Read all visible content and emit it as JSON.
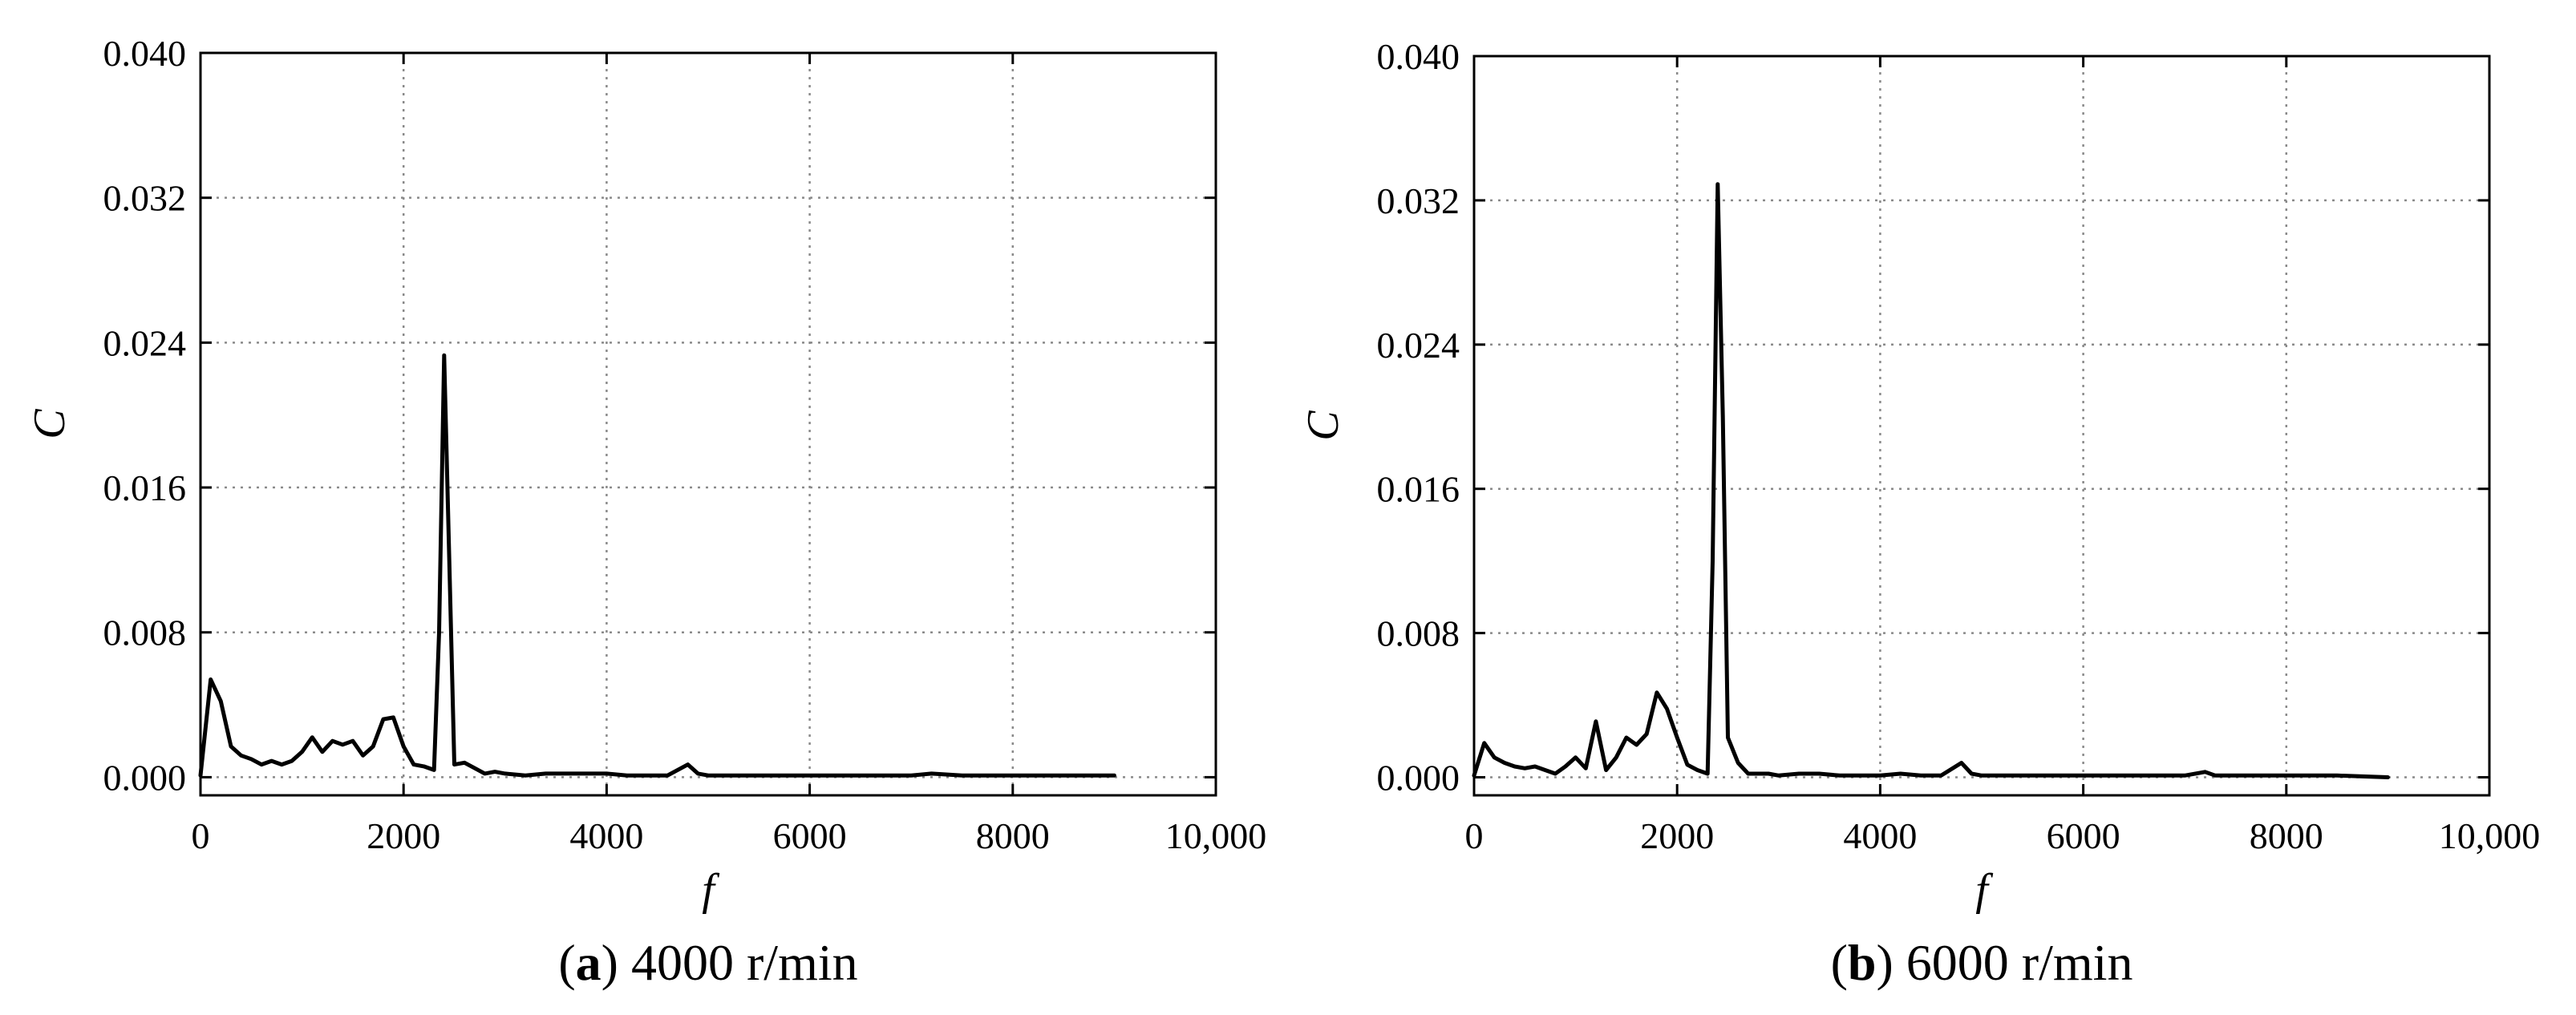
{
  "chart_data": [
    {
      "type": "line",
      "caption_letter": "a",
      "caption_rest": " 4000 r/min",
      "xlabel": "f",
      "ylabel": "C",
      "xlim": [
        0,
        10000
      ],
      "ylim": [
        -0.001,
        0.04
      ],
      "x_ticks": [
        0,
        2000,
        4000,
        6000,
        8000,
        10000
      ],
      "x_tick_labels": [
        "0",
        "2000",
        "4000",
        "6000",
        "8000",
        "10,000"
      ],
      "y_ticks": [
        0.0,
        0.008,
        0.016,
        0.024,
        0.032,
        0.04
      ],
      "y_tick_labels": [
        "0.000",
        "0.008",
        "0.016",
        "0.024",
        "0.032",
        "0.040"
      ],
      "grid": true,
      "series": [
        {
          "x": [
            0,
            100,
            200,
            300,
            400,
            500,
            600,
            700,
            800,
            900,
            1000,
            1100,
            1200,
            1300,
            1400,
            1500,
            1600,
            1700,
            1800,
            1900,
            2000,
            2100,
            2200,
            2300,
            2350,
            2400,
            2450,
            2500,
            2600,
            2700,
            2800,
            2900,
            3000,
            3200,
            3400,
            3600,
            3800,
            4000,
            4200,
            4400,
            4600,
            4800,
            4900,
            5000,
            5500,
            6000,
            6500,
            7000,
            7200,
            7500,
            8000,
            8500,
            9000
          ],
          "y": [
            0.0001,
            0.0054,
            0.0042,
            0.0017,
            0.0012,
            0.001,
            0.0007,
            0.0009,
            0.0007,
            0.0009,
            0.0014,
            0.0022,
            0.0014,
            0.002,
            0.0018,
            0.002,
            0.0012,
            0.0017,
            0.0032,
            0.0033,
            0.0017,
            0.0007,
            0.0006,
            0.0004,
            0.008,
            0.0233,
            0.012,
            0.0007,
            0.0008,
            0.0005,
            0.0002,
            0.0003,
            0.0002,
            0.0001,
            0.0002,
            0.0002,
            0.0002,
            0.0002,
            0.0001,
            0.0001,
            0.0001,
            0.0007,
            0.0002,
            0.0001,
            0.0001,
            0.0001,
            0.0001,
            0.0001,
            0.0002,
            0.0001,
            0.0001,
            0.0001,
            0.0001
          ]
        }
      ]
    },
    {
      "type": "line",
      "caption_letter": "b",
      "caption_rest": " 6000 r/min",
      "xlabel": "f",
      "ylabel": "C",
      "xlim": [
        0,
        10000
      ],
      "ylim": [
        -0.001,
        0.04
      ],
      "x_ticks": [
        0,
        2000,
        4000,
        6000,
        8000,
        10000
      ],
      "x_tick_labels": [
        "0",
        "2000",
        "4000",
        "6000",
        "8000",
        "10,000"
      ],
      "y_ticks": [
        0.0,
        0.008,
        0.016,
        0.024,
        0.032,
        0.04
      ],
      "y_tick_labels": [
        "0.000",
        "0.008",
        "0.016",
        "0.024",
        "0.032",
        "0.040"
      ],
      "grid": true,
      "series": [
        {
          "x": [
            0,
            100,
            200,
            300,
            400,
            500,
            600,
            700,
            800,
            900,
            1000,
            1100,
            1200,
            1300,
            1400,
            1500,
            1600,
            1700,
            1800,
            1900,
            2000,
            2100,
            2200,
            2300,
            2350,
            2400,
            2450,
            2500,
            2600,
            2700,
            2800,
            2900,
            3000,
            3200,
            3400,
            3600,
            3800,
            4000,
            4200,
            4400,
            4600,
            4800,
            4900,
            5000,
            5500,
            6000,
            6500,
            7000,
            7200,
            7300,
            7500,
            8000,
            8400,
            8500,
            9000
          ],
          "y": [
            0.0001,
            0.0019,
            0.0011,
            0.0008,
            0.0006,
            0.0005,
            0.0006,
            0.0004,
            0.0002,
            0.0006,
            0.0011,
            0.0005,
            0.0031,
            0.0004,
            0.0011,
            0.0022,
            0.0018,
            0.0024,
            0.0047,
            0.0038,
            0.0022,
            0.0007,
            0.0004,
            0.0002,
            0.012,
            0.0329,
            0.02,
            0.0022,
            0.0008,
            0.0002,
            0.0002,
            0.0002,
            0.0001,
            0.0002,
            0.0002,
            0.0001,
            0.0001,
            0.0001,
            0.0002,
            0.0001,
            0.0001,
            0.0008,
            0.0002,
            0.0001,
            0.0001,
            0.0001,
            0.0001,
            0.0001,
            0.0003,
            0.0001,
            0.0001,
            0.0001,
            0.0001,
            0.0001,
            0.0
          ]
        }
      ]
    }
  ]
}
